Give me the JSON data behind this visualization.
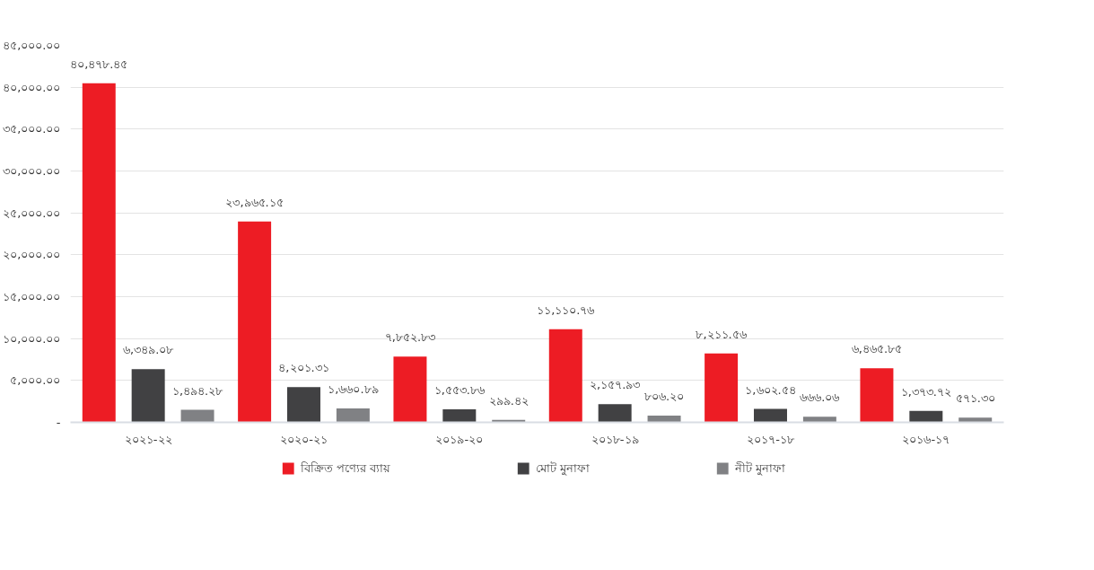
{
  "chart_data": {
    "type": "bar",
    "categories": [
      "২০২১-২২",
      "২০২০-২১",
      "২০১৯-২০",
      "২০১৮-১৯",
      "২০১৭-১৮",
      "২০১৬-১৭"
    ],
    "series": [
      {
        "name": "বিক্রিত পণ্যের ব্যায়",
        "color": "#ed1c24",
        "values": [
          40478.45,
          23965.15,
          7852.83,
          11110.76,
          8211.56,
          6465.85
        ],
        "value_labels": [
          "৪০,৪৭৮.৪৫",
          "২৩,৯৬৫.১৫",
          "৭,৮৫২.৮৩",
          "১১,১১০.৭৬",
          "৮,২১১.৫৬",
          "৬,৪৬৫.৮৫"
        ]
      },
      {
        "name": "মোট মুনাফা",
        "color": "#414143",
        "values": [
          6349.08,
          4201.31,
          1553.86,
          2157.93,
          1602.54,
          1373.72
        ],
        "value_labels": [
          "৬,৩৪৯.০৮",
          "৪,২০১.৩১",
          "১,৫৫৩.৮৬",
          "২,১৫৭.৯৩",
          "১,৬০২.৫৪",
          "১,৩৭৩.৭২"
        ]
      },
      {
        "name": "নীট মুনাফা",
        "color": "#808184",
        "values": [
          1494.28,
          1660.89,
          299.42,
          806.2,
          666.06,
          571.3
        ],
        "value_labels": [
          "১,৪৯৪.২৮",
          "১,৬৬০.৮৯",
          "২৯৯.৪২",
          "৮০৬.২০",
          "৬৬৬.০৬",
          "৫৭১.৩০"
        ]
      }
    ],
    "ylim": [
      0,
      45000
    ],
    "yticks": [
      {
        "value": 0,
        "label": "-"
      },
      {
        "value": 5000,
        "label": "৫,০০০.০০"
      },
      {
        "value": 10000,
        "label": "১০,০০০.০০"
      },
      {
        "value": 15000,
        "label": "১৫,০০০.০০"
      },
      {
        "value": 20000,
        "label": "২০,০০০.০০"
      },
      {
        "value": 25000,
        "label": "২৫,০০০.০০"
      },
      {
        "value": 30000,
        "label": "৩০,০০০.০০"
      },
      {
        "value": 35000,
        "label": "৩৫,০০০.০০"
      },
      {
        "value": 40000,
        "label": "৪০,০০০.০০"
      },
      {
        "value": 45000,
        "label": "৪৫,০০০.০০"
      }
    ],
    "grid": "y",
    "legend": "bottom"
  }
}
